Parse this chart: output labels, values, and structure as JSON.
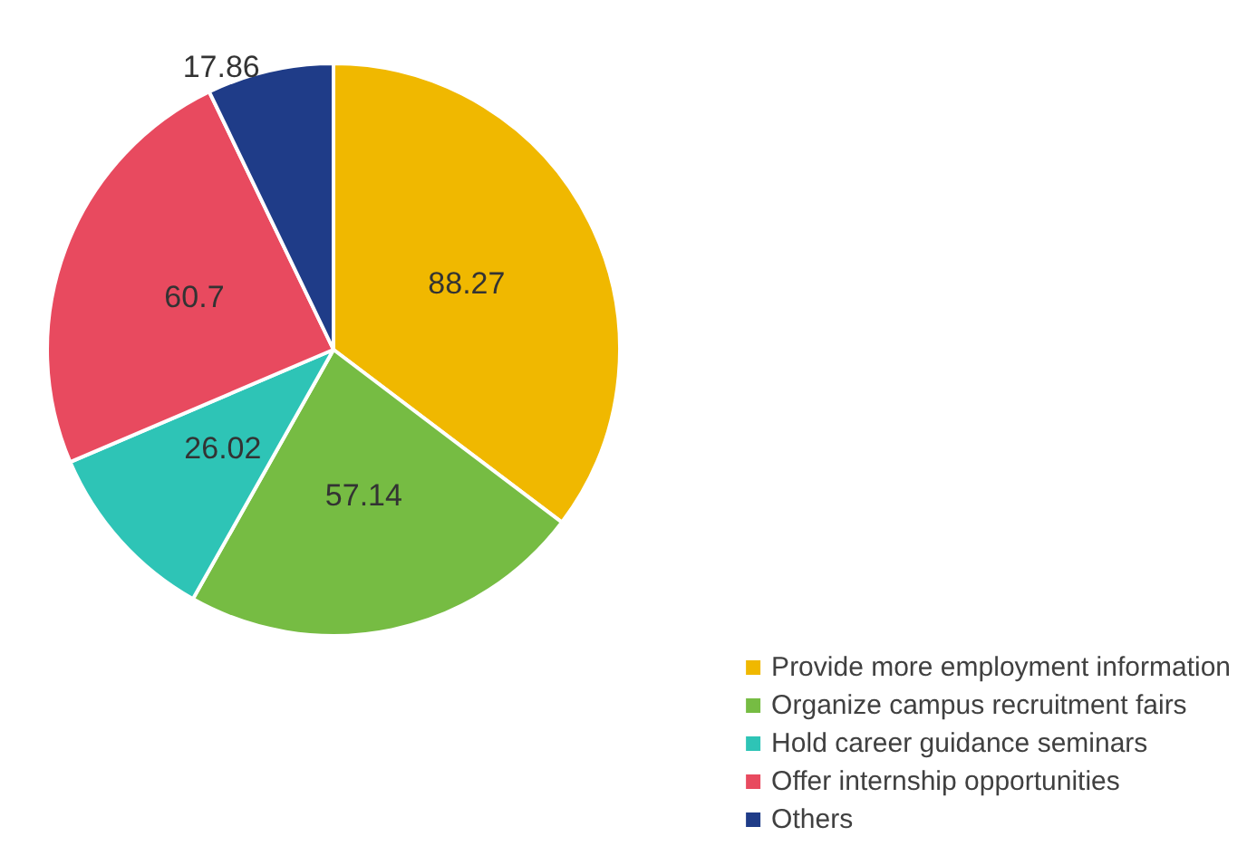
{
  "chart_data": {
    "type": "pie",
    "categories": [
      "Provide more employment information",
      "Organize campus recruitment fairs",
      "Hold career guidance seminars",
      "Offer internship opportunities",
      "Others"
    ],
    "values": [
      88.27,
      57.14,
      26.02,
      60.7,
      17.86
    ],
    "colors": [
      "#f0b800",
      "#76bc43",
      "#2ec4b6",
      "#e84a5f",
      "#1f3c88"
    ],
    "data_labels": true,
    "legend": "bottom right"
  }
}
